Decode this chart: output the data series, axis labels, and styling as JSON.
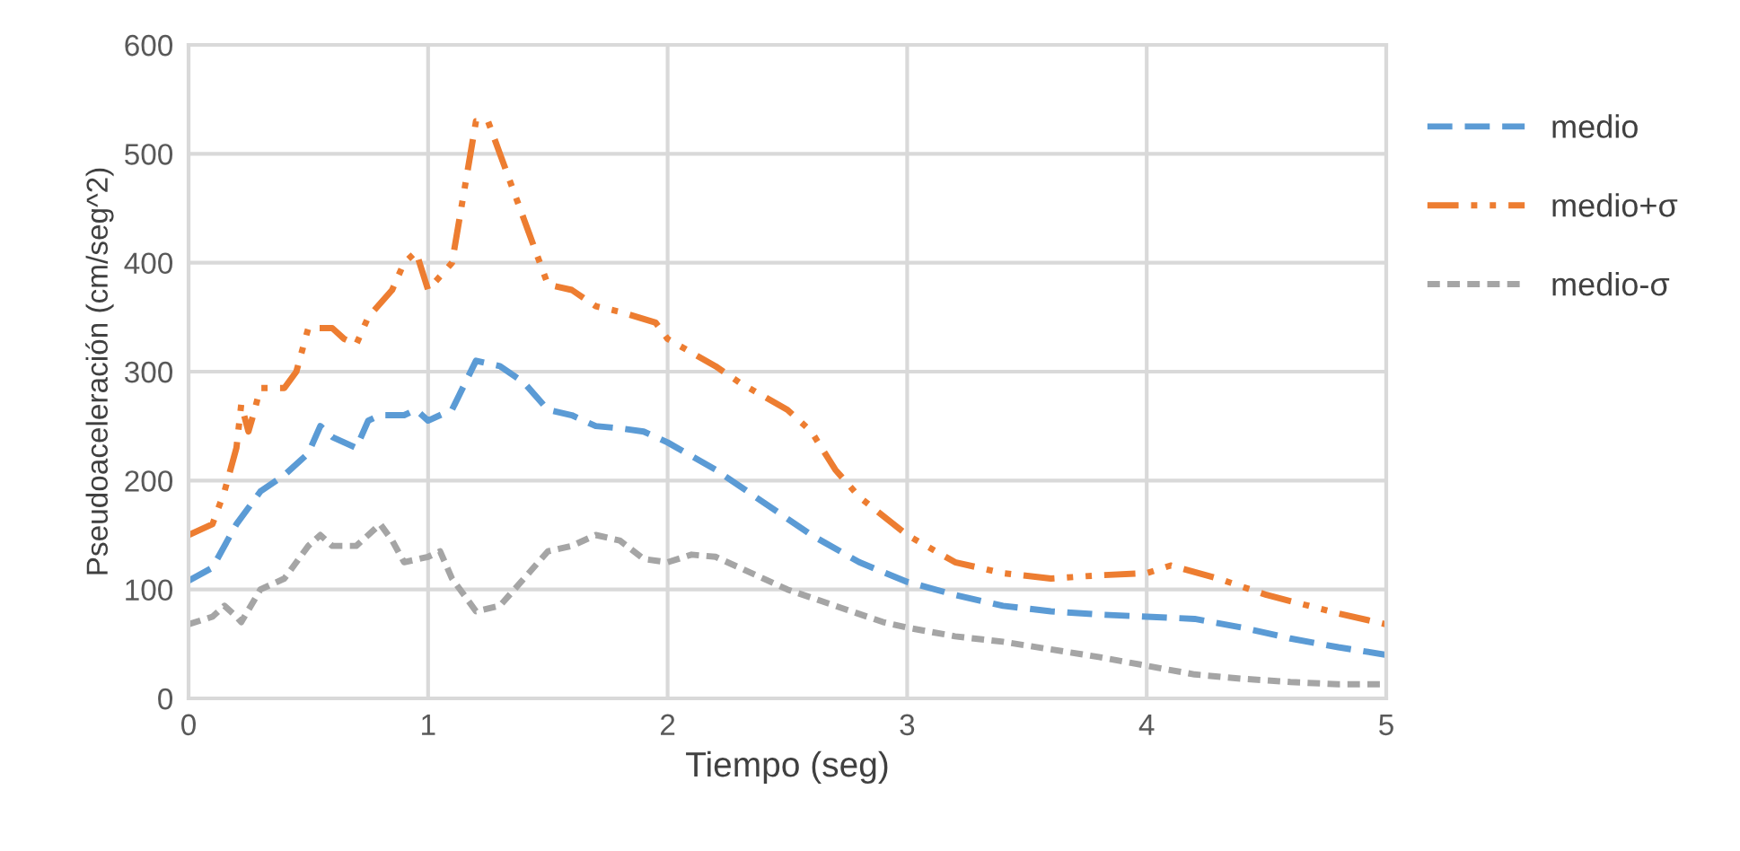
{
  "chart_data": {
    "type": "line",
    "xlabel": "Tiempo (seg)",
    "ylabel": "Pseudoaceleración (cm/seg^2)",
    "xlim": [
      0,
      5
    ],
    "xticks": [
      0,
      1,
      2,
      3,
      4,
      5
    ],
    "ylim": [
      0,
      600
    ],
    "yticks": [
      0,
      100,
      200,
      300,
      400,
      500,
      600
    ],
    "grid": true,
    "legend": "right",
    "marker": "none",
    "series": [
      {
        "name": "medio",
        "color": "#5b9bd5",
        "line_style": "dashed",
        "x": [
          0,
          0.1,
          0.2,
          0.3,
          0.4,
          0.5,
          0.55,
          0.6,
          0.7,
          0.75,
          0.8,
          0.9,
          0.95,
          1.0,
          1.1,
          1.2,
          1.3,
          1.4,
          1.5,
          1.6,
          1.7,
          1.8,
          1.9,
          2.0,
          2.2,
          2.4,
          2.6,
          2.8,
          3.0,
          3.2,
          3.4,
          3.6,
          3.8,
          4.0,
          4.2,
          4.4,
          4.6,
          4.8,
          5.0
        ],
        "values": [
          108,
          120,
          160,
          190,
          205,
          225,
          250,
          240,
          230,
          255,
          260,
          260,
          265,
          255,
          265,
          310,
          305,
          290,
          265,
          260,
          250,
          248,
          245,
          235,
          210,
          180,
          150,
          125,
          107,
          95,
          85,
          80,
          77,
          75,
          73,
          65,
          55,
          47,
          40
        ]
      },
      {
        "name": "medio+σ",
        "color": "#ed7d31",
        "line_style": "dashdot",
        "x": [
          0,
          0.1,
          0.15,
          0.2,
          0.22,
          0.25,
          0.27,
          0.3,
          0.4,
          0.45,
          0.5,
          0.6,
          0.65,
          0.7,
          0.75,
          0.85,
          0.9,
          0.95,
          1.0,
          1.1,
          1.2,
          1.25,
          1.3,
          1.4,
          1.5,
          1.6,
          1.7,
          1.8,
          1.95,
          2.0,
          2.2,
          2.3,
          2.5,
          2.6,
          2.7,
          2.8,
          3.0,
          3.2,
          3.4,
          3.6,
          3.8,
          4.0,
          4.1,
          4.3,
          4.5,
          4.8,
          5.0
        ],
        "values": [
          150,
          160,
          190,
          230,
          270,
          245,
          260,
          285,
          285,
          300,
          340,
          340,
          330,
          325,
          350,
          375,
          400,
          410,
          375,
          400,
          530,
          530,
          500,
          440,
          380,
          375,
          360,
          355,
          345,
          330,
          305,
          290,
          265,
          245,
          210,
          185,
          150,
          125,
          115,
          110,
          113,
          115,
          122,
          110,
          95,
          78,
          68
        ]
      },
      {
        "name": "medio-σ",
        "color": "#a5a5a5",
        "line_style": "dotted",
        "x": [
          0,
          0.1,
          0.15,
          0.2,
          0.22,
          0.3,
          0.4,
          0.5,
          0.55,
          0.6,
          0.7,
          0.8,
          0.85,
          0.9,
          1.0,
          1.05,
          1.1,
          1.2,
          1.3,
          1.4,
          1.5,
          1.6,
          1.7,
          1.8,
          1.9,
          2.0,
          2.1,
          2.2,
          2.3,
          2.5,
          2.7,
          2.9,
          3.0,
          3.2,
          3.4,
          3.6,
          3.8,
          4.0,
          4.2,
          4.4,
          4.6,
          4.8,
          5.0
        ],
        "values": [
          68,
          75,
          85,
          75,
          70,
          100,
          110,
          140,
          150,
          140,
          140,
          160,
          145,
          125,
          130,
          135,
          110,
          80,
          85,
          110,
          135,
          140,
          150,
          145,
          128,
          125,
          132,
          130,
          120,
          100,
          85,
          70,
          65,
          57,
          52,
          45,
          38,
          30,
          22,
          18,
          15,
          13,
          13
        ]
      }
    ]
  }
}
